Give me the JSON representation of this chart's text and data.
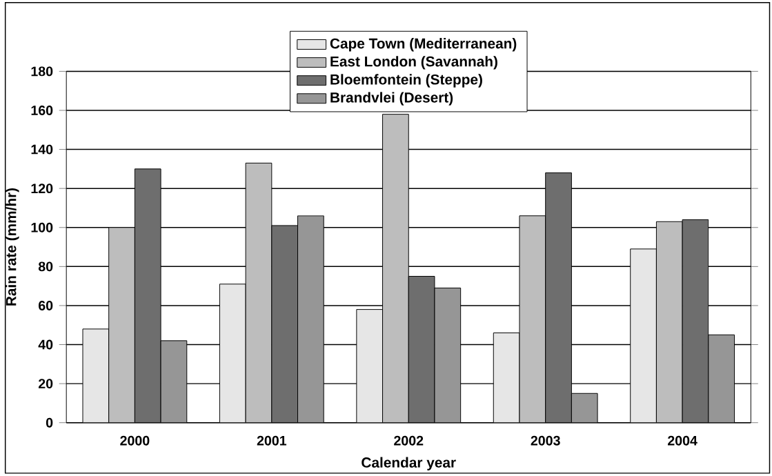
{
  "chart_data": {
    "type": "bar",
    "xlabel": "Calendar year",
    "ylabel": "Rain rate (mm/hr)",
    "categories": [
      "2000",
      "2001",
      "2002",
      "2003",
      "2004"
    ],
    "series": [
      {
        "name": "Cape Town (Mediterranean)",
        "color": "#e6e6e6",
        "values": [
          48,
          71,
          58,
          46,
          89
        ]
      },
      {
        "name": "East London (Savannah)",
        "color": "#bdbdbd",
        "values": [
          100,
          133,
          158,
          106,
          103
        ]
      },
      {
        "name": "Bloemfontein (Steppe)",
        "color": "#6e6e6e",
        "values": [
          130,
          101,
          75,
          128,
          104
        ]
      },
      {
        "name": "Brandvlei (Desert)",
        "color": "#969696",
        "values": [
          42,
          106,
          69,
          15,
          45
        ]
      }
    ],
    "ylim": [
      0,
      180
    ],
    "yticks": [
      0,
      20,
      40,
      60,
      80,
      100,
      120,
      140,
      160,
      180
    ],
    "grid": "y",
    "legend": "top"
  }
}
